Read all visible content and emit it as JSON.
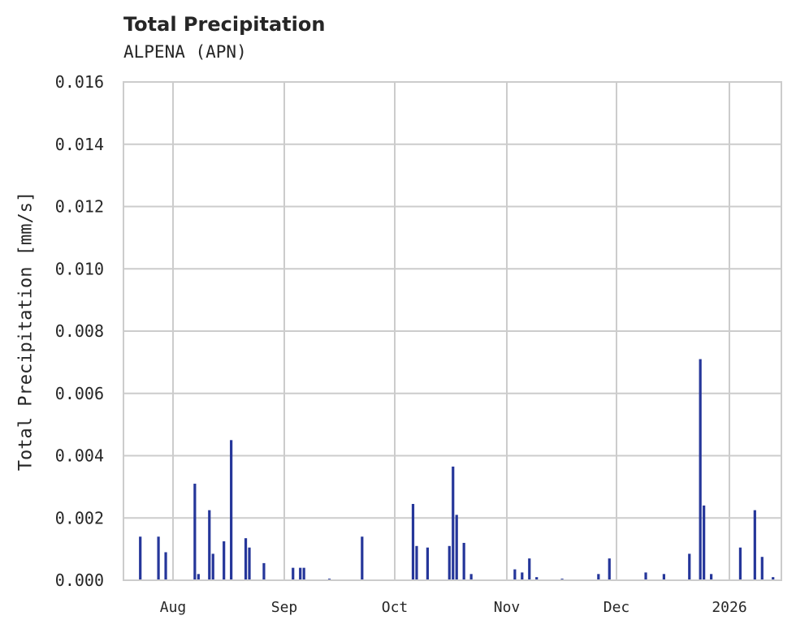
{
  "header": {
    "title": "Total Precipitation",
    "subtitle": "ALPENA (APN)"
  },
  "colors": {
    "bar": "#25369a",
    "grid": "#cccccc",
    "text": "#262626"
  },
  "chart_data": {
    "type": "bar",
    "title": "Total Precipitation",
    "subtitle": "ALPENA (APN)",
    "xlabel": "",
    "ylabel": "Total Precipitation [mm/s]",
    "ylim": [
      0,
      0.016
    ],
    "yticks": [
      "0.000",
      "0.002",
      "0.004",
      "0.006",
      "0.008",
      "0.010",
      "0.012",
      "0.014",
      "0.016"
    ],
    "xticks": [
      "Aug",
      "Sep",
      "Oct",
      "Nov",
      "Dec",
      "2026"
    ],
    "grid": true,
    "legend": null,
    "series": [
      {
        "name": "Total Precipitation",
        "points": [
          {
            "date": "2025-07-23",
            "value": 0.0014
          },
          {
            "date": "2025-07-28",
            "value": 0.0014
          },
          {
            "date": "2025-07-30",
            "value": 0.0009
          },
          {
            "date": "2025-08-07",
            "value": 0.0031
          },
          {
            "date": "2025-08-08",
            "value": 0.0002
          },
          {
            "date": "2025-08-11",
            "value": 0.00225
          },
          {
            "date": "2025-08-12",
            "value": 0.00085
          },
          {
            "date": "2025-08-15",
            "value": 0.00125
          },
          {
            "date": "2025-08-17",
            "value": 0.0045
          },
          {
            "date": "2025-08-21",
            "value": 0.00135
          },
          {
            "date": "2025-08-22",
            "value": 0.00105
          },
          {
            "date": "2025-08-26",
            "value": 0.00055
          },
          {
            "date": "2025-09-03",
            "value": 0.0004
          },
          {
            "date": "2025-09-05",
            "value": 0.0004
          },
          {
            "date": "2025-09-06",
            "value": 0.0004
          },
          {
            "date": "2025-09-13",
            "value": 5e-05
          },
          {
            "date": "2025-09-22",
            "value": 0.0014
          },
          {
            "date": "2025-10-06",
            "value": 0.00245
          },
          {
            "date": "2025-10-07",
            "value": 0.0011
          },
          {
            "date": "2025-10-10",
            "value": 0.00105
          },
          {
            "date": "2025-10-16",
            "value": 0.0011
          },
          {
            "date": "2025-10-17",
            "value": 0.00365
          },
          {
            "date": "2025-10-18",
            "value": 0.0021
          },
          {
            "date": "2025-10-20",
            "value": 0.0012
          },
          {
            "date": "2025-10-22",
            "value": 0.0002
          },
          {
            "date": "2025-11-03",
            "value": 0.00035
          },
          {
            "date": "2025-11-05",
            "value": 0.00025
          },
          {
            "date": "2025-11-07",
            "value": 0.0007
          },
          {
            "date": "2025-11-09",
            "value": 0.0001
          },
          {
            "date": "2025-11-16",
            "value": 5e-05
          },
          {
            "date": "2025-11-26",
            "value": 0.0002
          },
          {
            "date": "2025-11-29",
            "value": 0.0007
          },
          {
            "date": "2025-12-09",
            "value": 0.00025
          },
          {
            "date": "2025-12-14",
            "value": 0.0002
          },
          {
            "date": "2025-12-21",
            "value": 0.00085
          },
          {
            "date": "2025-12-24",
            "value": 0.0071
          },
          {
            "date": "2025-12-25",
            "value": 0.0024
          },
          {
            "date": "2025-12-27",
            "value": 0.0002
          },
          {
            "date": "2026-01-04",
            "value": 0.00105
          },
          {
            "date": "2026-01-08",
            "value": 0.00225
          },
          {
            "date": "2026-01-10",
            "value": 0.00075
          },
          {
            "date": "2026-01-13",
            "value": 0.0001
          }
        ]
      }
    ]
  }
}
